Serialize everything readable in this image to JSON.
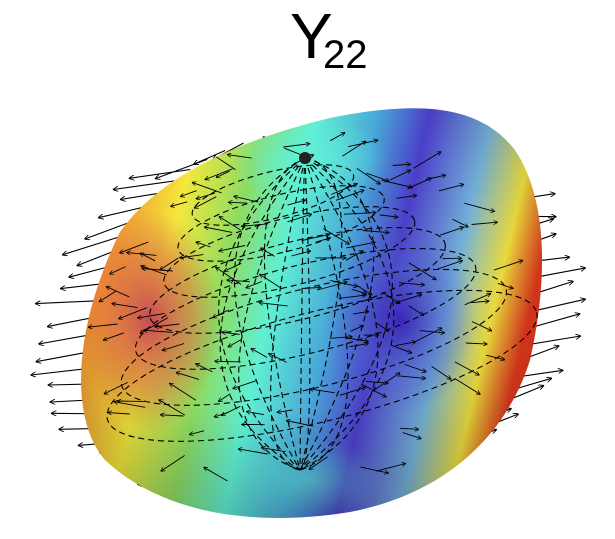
{
  "title": {
    "main": "Y",
    "subscript": "22"
  },
  "colormap": [
    "#e02020",
    "#f0a030",
    "#f2ee3a",
    "#9ce060",
    "#5ef0d6",
    "#4aa6dc",
    "#4b3ec8"
  ],
  "lobes": {
    "positive": [
      "red-orange",
      "magenta"
    ],
    "negative": [
      "blue-violet"
    ]
  },
  "field_arrows": {
    "color": "#000000"
  },
  "mesh": {
    "style": "dashed",
    "color": "#000000"
  }
}
